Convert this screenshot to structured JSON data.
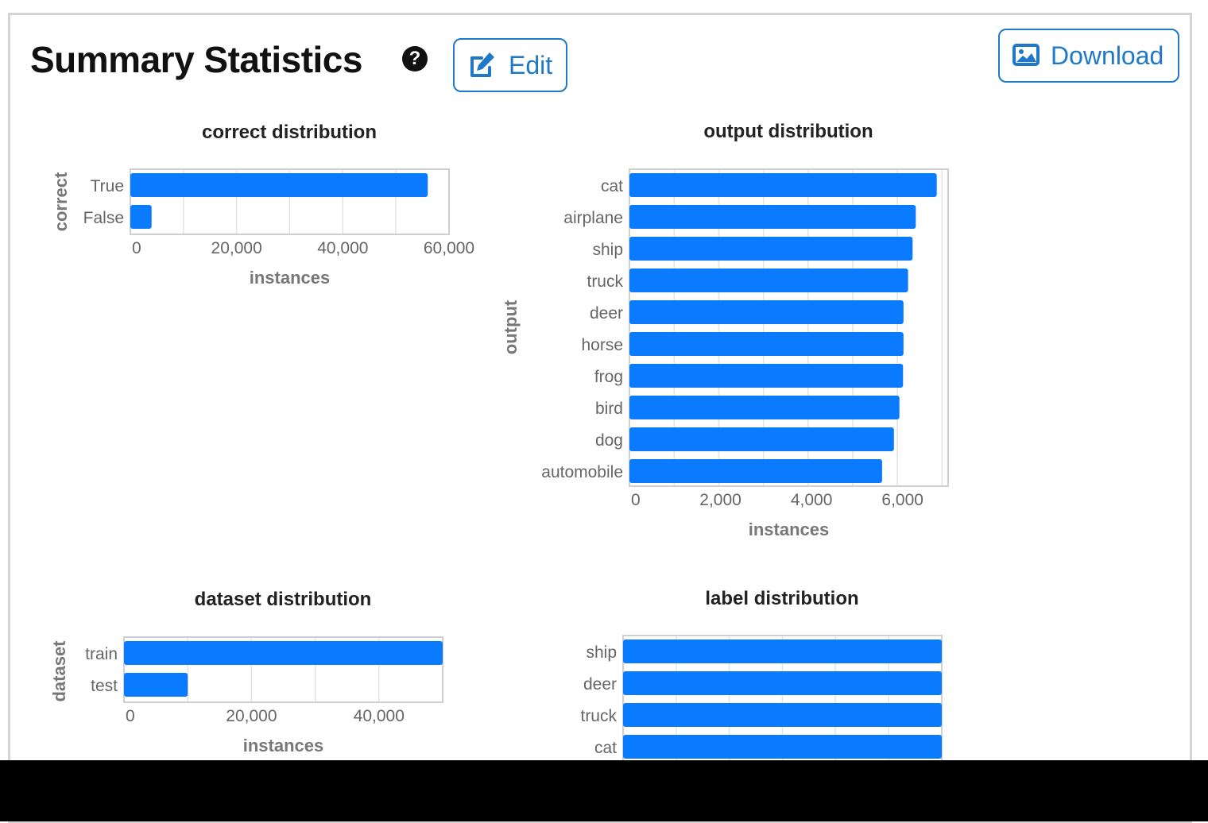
{
  "header": {
    "title": "Summary Statistics",
    "help_glyph": "?",
    "edit_label": "Edit",
    "download_label": "Download"
  },
  "icons": {
    "help": "question-circle-icon",
    "edit": "pencil-square-icon",
    "download": "image-icon"
  },
  "colors": {
    "bar": "#0a7bff",
    "button_accent": "#1f78c8",
    "panel_border": "#d4d4d4"
  },
  "chart_data": [
    {
      "type": "bar",
      "orientation": "horizontal",
      "title": "correct distribution",
      "xlabel": "instances",
      "ylabel": "correct",
      "categories": [
        "True",
        "False"
      ],
      "values": [
        56000,
        4000
      ],
      "xticks": [
        0,
        20000,
        40000,
        60000
      ],
      "xtick_labels": [
        "0",
        "20,000",
        "40,000",
        "60,000"
      ],
      "xlim": [
        0,
        60000
      ],
      "grid": true
    },
    {
      "type": "bar",
      "orientation": "horizontal",
      "title": "output distribution",
      "xlabel": "instances",
      "ylabel": "output",
      "categories": [
        "cat",
        "airplane",
        "ship",
        "truck",
        "deer",
        "horse",
        "frog",
        "bird",
        "dog",
        "automobile"
      ],
      "values": [
        6750,
        6290,
        6220,
        6120,
        6020,
        6020,
        6010,
        5930,
        5810,
        5550
      ],
      "xticks": [
        0,
        2000,
        4000,
        6000
      ],
      "xtick_labels": [
        "0",
        "2,000",
        "4,000",
        "6,000"
      ],
      "xlim": [
        0,
        7000
      ],
      "grid": true
    },
    {
      "type": "bar",
      "orientation": "horizontal",
      "title": "dataset distribution",
      "xlabel": "instances",
      "ylabel": "dataset",
      "categories": [
        "train",
        "test"
      ],
      "values": [
        50000,
        10000
      ],
      "xticks": [
        0,
        20000,
        40000
      ],
      "xtick_labels": [
        "0",
        "20,000",
        "40,000"
      ],
      "xlim": [
        0,
        50000
      ],
      "grid": true
    },
    {
      "type": "bar",
      "orientation": "horizontal",
      "title": "label distribution",
      "xlabel": "",
      "ylabel": "",
      "categories": [
        "ship",
        "deer",
        "truck",
        "cat"
      ],
      "values": [
        6000,
        6000,
        6000,
        6000
      ],
      "xlim": [
        0,
        6000
      ],
      "grid": true
    }
  ]
}
